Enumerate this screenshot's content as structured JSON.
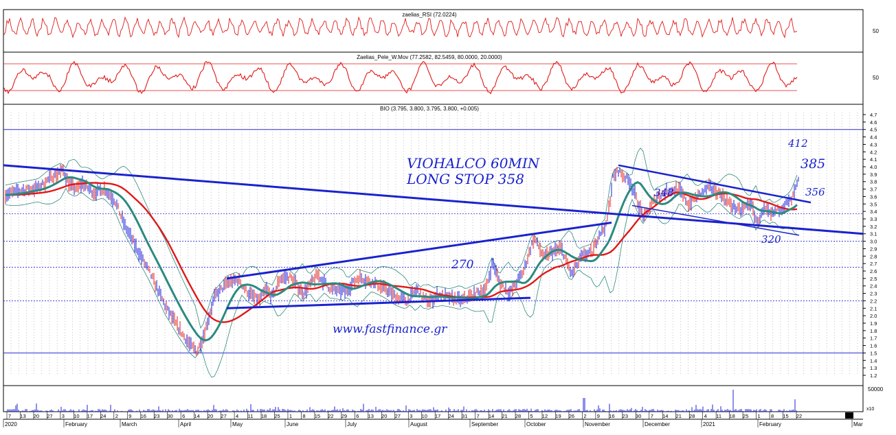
{
  "panels": {
    "rsi": {
      "title": "zaelias_RSI (72.0224)",
      "tick": "50"
    },
    "pele": {
      "title": "Zaelias_Pele_W.Mov (77.2582, 82.5459, 80.0000, 20.0000)",
      "tick": "50"
    },
    "price": {
      "title": "BIO (3.795, 3.800, 3.795, 3.800, +0.005)"
    },
    "volume": {
      "tick": "50000",
      "mult": "x10"
    }
  },
  "annotations": {
    "name": "VIOHALCO 60MIN",
    "stop": "LONG STOP 358",
    "a412": "412",
    "a385": "385",
    "a356": "356",
    "a348": "348",
    "a320": "320",
    "a270": "270",
    "website": "www.fastfinance.gr"
  },
  "chart_data": {
    "type": "line",
    "title": "BIO (3.795, 3.800, 3.795, 3.800, +0.005)",
    "y_ticks": [
      "4.7",
      "4.6",
      "4.5",
      "4.4",
      "4.3",
      "4.2",
      "4.1",
      "4.0",
      "3.9",
      "3.8",
      "3.7",
      "3.6",
      "3.5",
      "3.4",
      "3.3",
      "3.2",
      "3.1",
      "3.0",
      "2.9",
      "2.8",
      "2.7",
      "2.6",
      "2.5",
      "2.4",
      "2.3",
      "2.2",
      "2.1",
      "2.0",
      "1.9",
      "1.8",
      "1.7",
      "1.6",
      "1.5",
      "1.4",
      "1.3",
      "1.2"
    ],
    "ylim": [
      1.2,
      4.7
    ],
    "x_day_ticks": [
      "7",
      "13",
      "20",
      "27",
      "3",
      "10",
      "17",
      "24",
      "2",
      "9",
      "16",
      "23",
      "30",
      "6",
      "14",
      "20",
      "27",
      "4",
      "11",
      "18",
      "25",
      "1",
      "8",
      "15",
      "22",
      "29",
      "6",
      "13",
      "20",
      "27",
      "3",
      "10",
      "17",
      "24",
      "31",
      "7",
      "14",
      "21",
      "28",
      "5",
      "12",
      "19",
      "26",
      "2",
      "9",
      "16",
      "23",
      "30",
      "7",
      "14",
      "21",
      "28",
      "4",
      "11",
      "18",
      "25",
      "1",
      "8",
      "15",
      "22"
    ],
    "x_month_labels": [
      "2020",
      "February",
      "March",
      "April",
      "May",
      "June",
      "July",
      "August",
      "September",
      "October",
      "November",
      "December",
      "2021",
      "February",
      "Mar"
    ],
    "horizontal_levels": [
      4.5,
      3.37,
      3.0,
      2.65,
      2.2,
      1.5
    ],
    "series": [
      {
        "values_x": [
          0,
          30,
          55,
          75,
          90,
          100,
          110,
          118,
          125,
          135,
          150,
          165,
          180,
          200,
          220,
          240,
          260,
          275,
          285,
          295,
          310,
          330,
          345,
          360,
          375,
          385,
          395,
          405,
          420,
          440,
          460,
          480,
          500,
          520,
          540,
          560,
          575,
          590,
          605,
          615,
          625,
          635,
          650,
          670,
          690,
          705,
          715,
          725,
          740,
          760,
          775,
          790,
          800,
          815,
          830,
          845,
          860,
          870,
          880,
          885,
          890,
          898,
          905,
          915,
          925,
          935,
          945,
          955,
          970,
          985,
          1000,
          1015,
          1030,
          1045,
          1060,
          1075,
          1090,
          1100,
          1110,
          1120,
          1135,
          1150,
          1160
        ],
        "values": [
          3.62,
          3.68,
          3.72,
          3.88,
          3.95,
          3.75,
          3.7,
          3.78,
          3.72,
          3.65,
          3.7,
          3.55,
          3.2,
          2.85,
          2.5,
          2.1,
          1.8,
          1.6,
          1.52,
          1.75,
          2.25,
          2.45,
          2.48,
          2.3,
          2.2,
          2.35,
          2.25,
          2.5,
          2.52,
          2.3,
          2.55,
          2.35,
          2.32,
          2.52,
          2.45,
          2.35,
          2.25,
          2.2,
          2.35,
          2.22,
          2.2,
          2.28,
          2.25,
          2.2,
          2.3,
          2.35,
          2.72,
          2.45,
          2.3,
          2.6,
          3.05,
          2.78,
          2.85,
          2.9,
          2.55,
          2.8,
          2.85,
          3.1,
          3.2,
          3.5,
          3.85,
          3.95,
          3.88,
          3.8,
          3.55,
          3.3,
          3.48,
          3.6,
          3.68,
          3.7,
          3.5,
          3.62,
          3.72,
          3.65,
          3.5,
          3.4,
          3.52,
          3.25,
          3.42,
          3.35,
          3.45,
          3.55,
          3.8
        ]
      }
    ]
  }
}
